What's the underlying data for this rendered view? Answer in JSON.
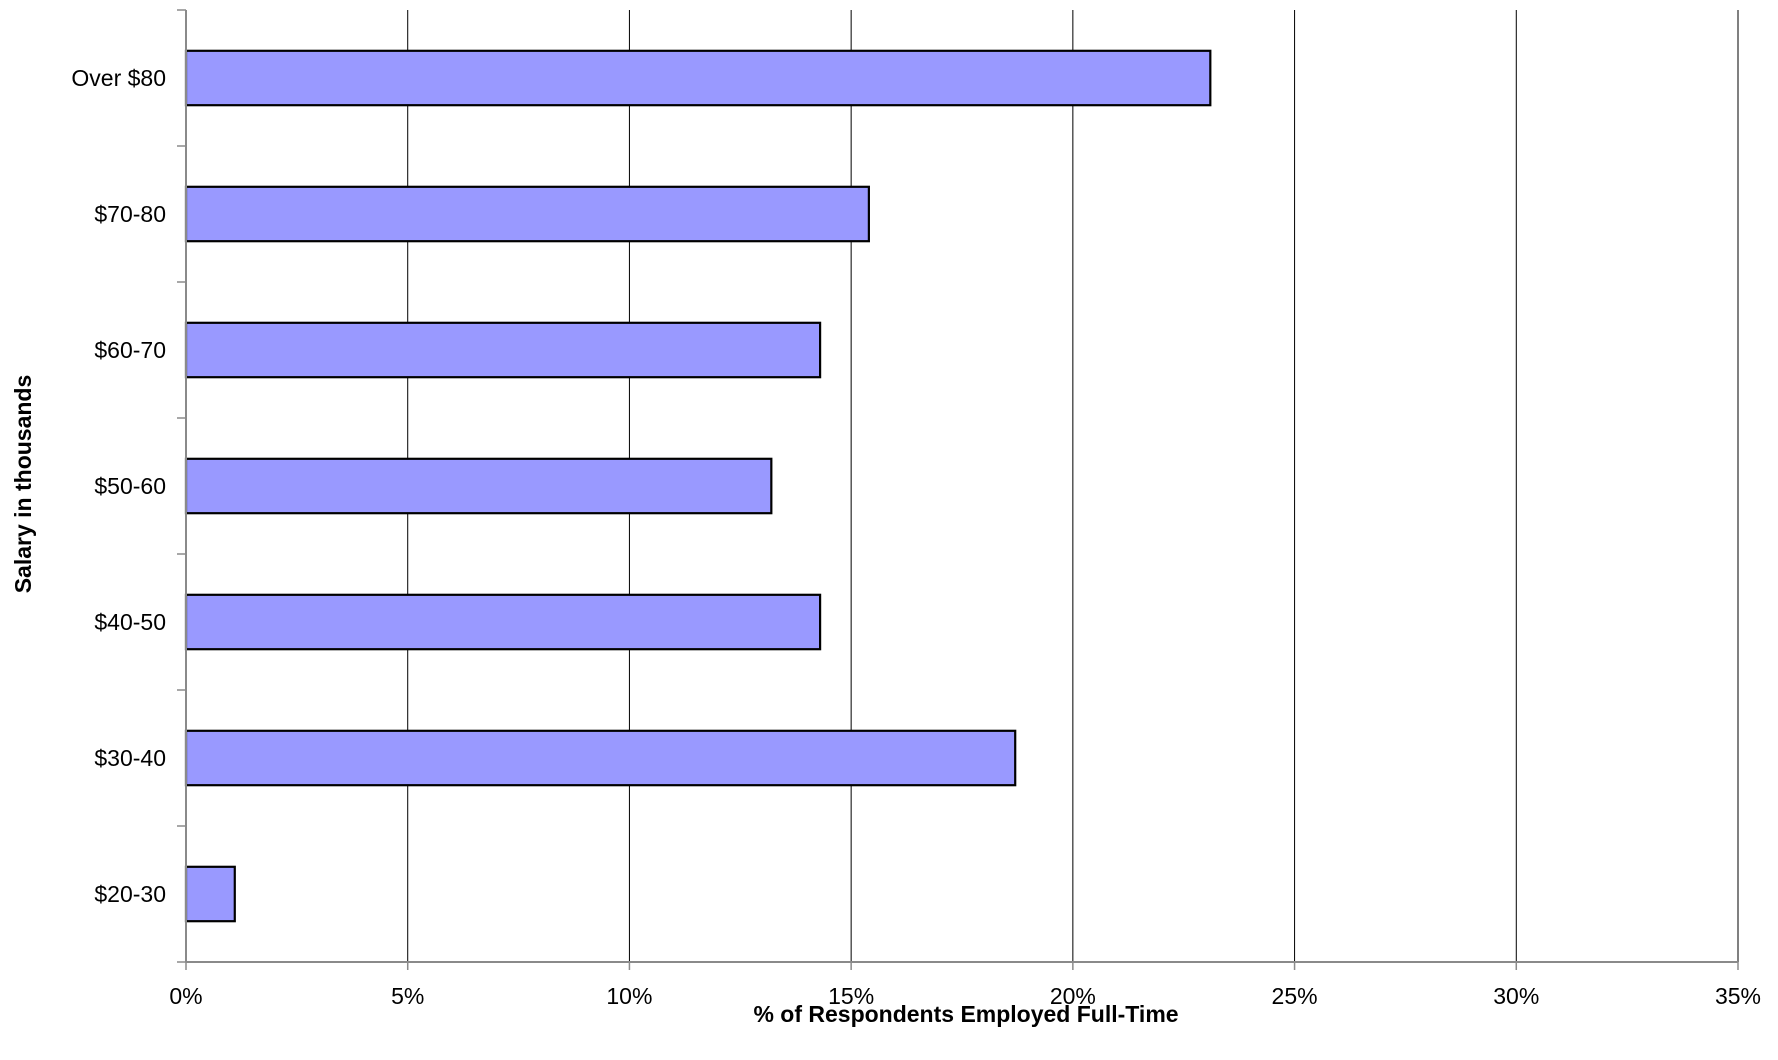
{
  "chart_data": {
    "type": "bar",
    "orientation": "horizontal",
    "categories": [
      "$20-30",
      "$30-40",
      "$40-50",
      "$50-60",
      "$60-70",
      "$70-80",
      "Over $80"
    ],
    "values": [
      1.1,
      18.7,
      14.3,
      13.2,
      14.3,
      15.4,
      23.1
    ],
    "title": "",
    "xlabel": "% of Respondents Employed Full-Time",
    "ylabel": "Salary in thousands",
    "xlim": [
      0,
      35
    ],
    "x_ticks": [
      0,
      5,
      10,
      15,
      20,
      25,
      30,
      35
    ],
    "x_tick_labels": [
      "0%",
      "5%",
      "10%",
      "15%",
      "20%",
      "25%",
      "30%",
      "35%"
    ],
    "grid": "vertical",
    "legend": "none",
    "colors": {
      "bar_fill": "#9999ff",
      "bar_stroke": "#000000",
      "grid": "#000000",
      "axis": "#8a8a8a"
    }
  }
}
